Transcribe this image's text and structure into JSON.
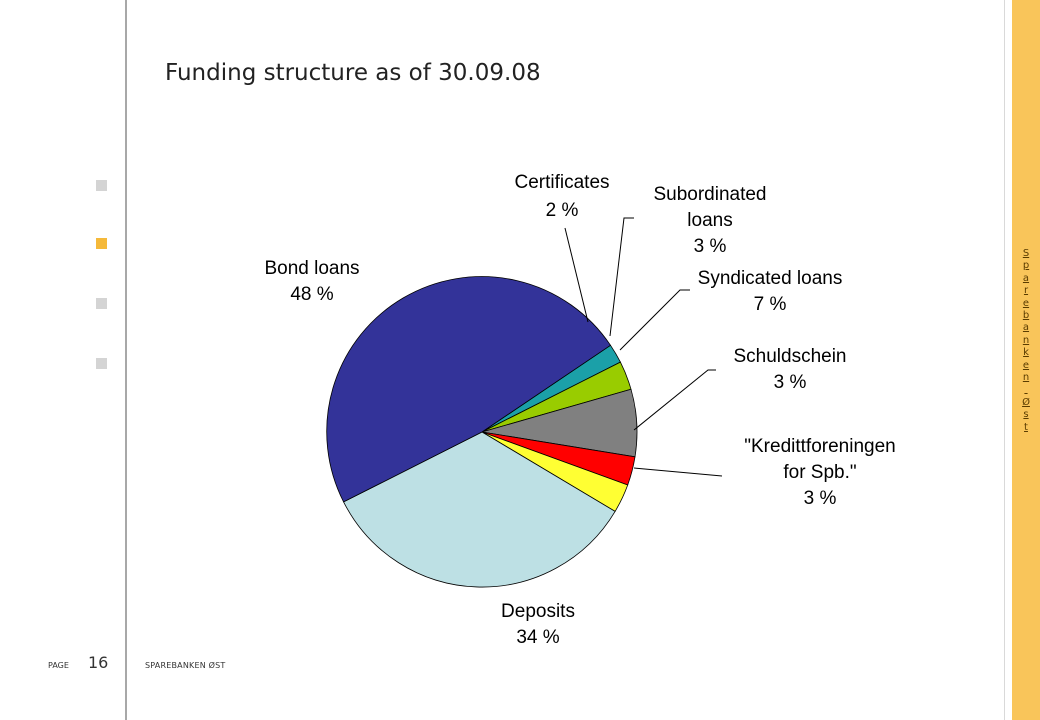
{
  "page": {
    "title": "Funding structure as of 30.09.08",
    "page_label": "PAGE",
    "page_number": "16",
    "footer_brand": "SPAREBANKEN ØST",
    "side_brand": "Sparebanken Øst"
  },
  "nav_bullets": [
    {
      "active": false
    },
    {
      "active": true
    },
    {
      "active": false
    },
    {
      "active": false
    }
  ],
  "chart_data": {
    "type": "pie",
    "title": "Funding structure as of 30.09.08",
    "unit": "%",
    "slices": [
      {
        "name": "Bond loans",
        "label_lines": [
          "Bond loans"
        ],
        "value_label": "48 %",
        "value": 48,
        "color": "#333399"
      },
      {
        "name": "Certificates",
        "label_lines": [
          "Certificates"
        ],
        "value_label": "2 %",
        "value": 2,
        "color": "#1ba0a8"
      },
      {
        "name": "Subordinated loans",
        "label_lines": [
          "Subordinated",
          "loans"
        ],
        "value_label": "3 %",
        "value": 3,
        "color": "#99cc00"
      },
      {
        "name": "Syndicated loans",
        "label_lines": [
          "Syndicated loans"
        ],
        "value_label": "7 %",
        "value": 7,
        "color": "#808080"
      },
      {
        "name": "Schuldschein",
        "label_lines": [
          "Schuldschein"
        ],
        "value_label": "3 %",
        "value": 3,
        "color": "#ff0000"
      },
      {
        "name": "\"Kredittforeningen for Spb.\"",
        "label_lines": [
          "\"Kredittforeningen",
          "for Spb.\""
        ],
        "value_label": "3 %",
        "value": 3,
        "color": "#ffff33"
      },
      {
        "name": "Deposits",
        "label_lines": [
          "Deposits"
        ],
        "value_label": "34 %",
        "value": 34,
        "color": "#bde0e4"
      }
    ]
  }
}
